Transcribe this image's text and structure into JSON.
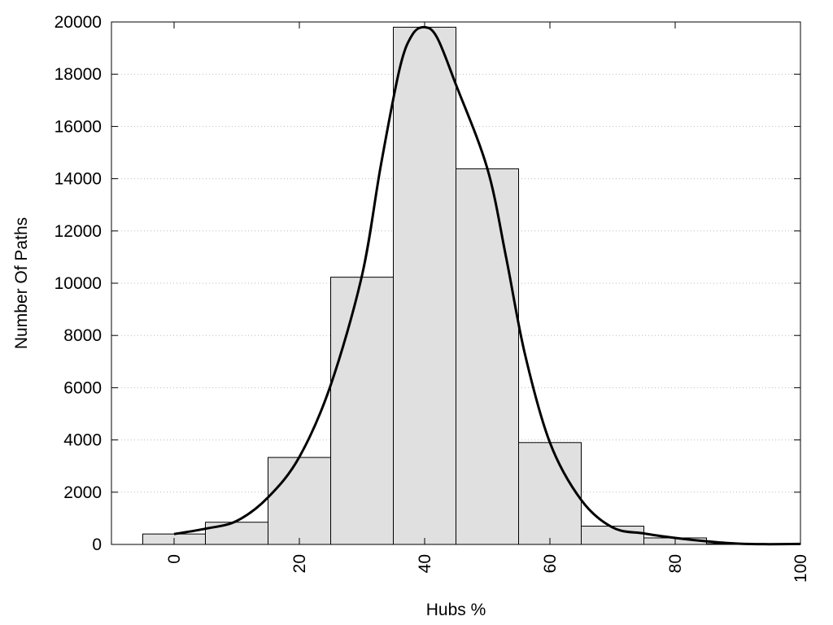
{
  "chart_data": {
    "type": "bar",
    "title": "",
    "xlabel": "Hubs %",
    "ylabel": "Number Of Paths",
    "xlim": [
      -10,
      100
    ],
    "ylim": [
      0,
      20000
    ],
    "x_ticks": [
      0,
      20,
      40,
      60,
      80,
      100
    ],
    "y_ticks": [
      0,
      2000,
      4000,
      6000,
      8000,
      10000,
      12000,
      14000,
      16000,
      18000,
      20000
    ],
    "grid": "horizontal dotted",
    "bin_width": 10,
    "bars": [
      {
        "x": 0,
        "value": 400
      },
      {
        "x": 10,
        "value": 850
      },
      {
        "x": 20,
        "value": 3330
      },
      {
        "x": 30,
        "value": 10230
      },
      {
        "x": 40,
        "value": 19800
      },
      {
        "x": 50,
        "value": 14380
      },
      {
        "x": 60,
        "value": 3900
      },
      {
        "x": 70,
        "value": 700
      },
      {
        "x": 80,
        "value": 250
      },
      {
        "x": 90,
        "value": 30
      },
      {
        "x": 100,
        "value": 10
      }
    ],
    "curve": [
      {
        "x": 0,
        "y": 400
      },
      {
        "x": 5,
        "y": 600
      },
      {
        "x": 10,
        "y": 900
      },
      {
        "x": 15,
        "y": 1800
      },
      {
        "x": 20,
        "y": 3350
      },
      {
        "x": 25,
        "y": 6100
      },
      {
        "x": 30,
        "y": 10300
      },
      {
        "x": 33,
        "y": 14500
      },
      {
        "x": 36,
        "y": 18200
      },
      {
        "x": 38,
        "y": 19500
      },
      {
        "x": 40,
        "y": 19800
      },
      {
        "x": 42,
        "y": 19400
      },
      {
        "x": 45,
        "y": 17600
      },
      {
        "x": 50,
        "y": 14400
      },
      {
        "x": 53,
        "y": 11000
      },
      {
        "x": 56,
        "y": 7300
      },
      {
        "x": 60,
        "y": 3900
      },
      {
        "x": 65,
        "y": 1700
      },
      {
        "x": 70,
        "y": 650
      },
      {
        "x": 75,
        "y": 420
      },
      {
        "x": 80,
        "y": 250
      },
      {
        "x": 85,
        "y": 120
      },
      {
        "x": 90,
        "y": 30
      },
      {
        "x": 95,
        "y": 10
      },
      {
        "x": 100,
        "y": 20
      }
    ],
    "bar_color": "#e0e0e0",
    "bar_stroke": "#000000",
    "curve_color": "#000000",
    "grid_color": "#bbbbbb"
  }
}
